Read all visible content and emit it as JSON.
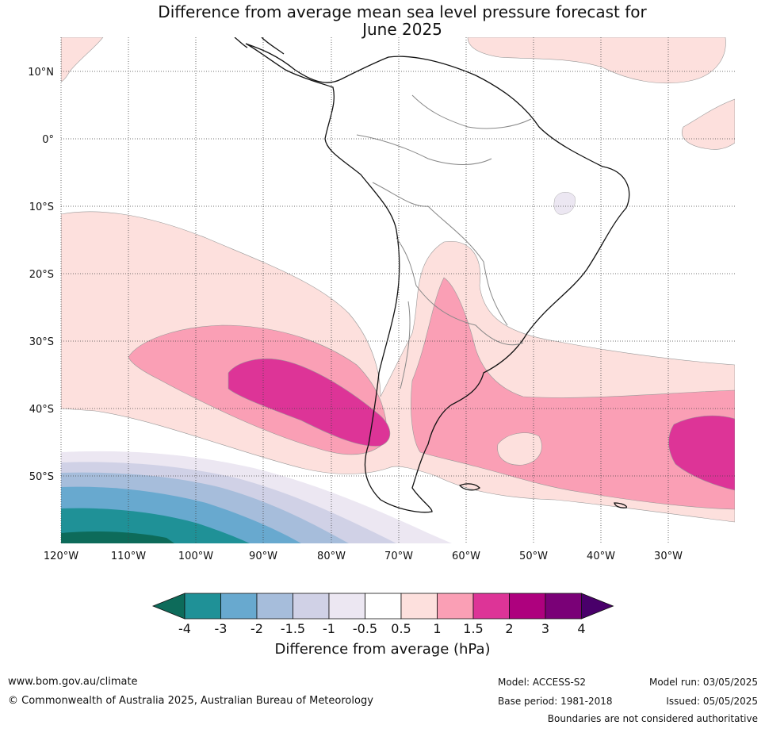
{
  "title_line1": "Difference from average mean sea level pressure forecast for",
  "title_line2": "June 2025",
  "lat_labels": [
    "10°N",
    "0°",
    "10°S",
    "20°S",
    "30°S",
    "40°S",
    "50°S"
  ],
  "lon_labels": [
    "120°W",
    "110°W",
    "100°W",
    "90°W",
    "80°W",
    "70°W",
    "60°W",
    "50°W",
    "40°W",
    "30°W"
  ],
  "colorbar": {
    "ticks": [
      "-4",
      "-3",
      "-2",
      "-1.5",
      "-1",
      "-0.5",
      "0.5",
      "1",
      "1.5",
      "2",
      "3",
      "4"
    ],
    "colors": [
      "#0d6b5a",
      "#1f9197",
      "#68a9cf",
      "#a6bddb",
      "#d0d1e6",
      "#ece7f2",
      "#ffffff",
      "#fde0dd",
      "#fa9fb5",
      "#dd3497",
      "#ae017e",
      "#7a0177",
      "#49006a"
    ],
    "label": "Difference from average (hPa)"
  },
  "footer": {
    "website": "www.bom.gov.au/climate",
    "copyright": "© Commonwealth of Australia 2025, Australian Bureau of Meteorology",
    "model": "Model: ACCESS-S2",
    "base_period": "Base period: 1981-2018",
    "model_run": "Model run: 03/05/2025",
    "issued": "Issued: 05/05/2025",
    "disclaimer": "Boundaries are not considered authoritative"
  }
}
